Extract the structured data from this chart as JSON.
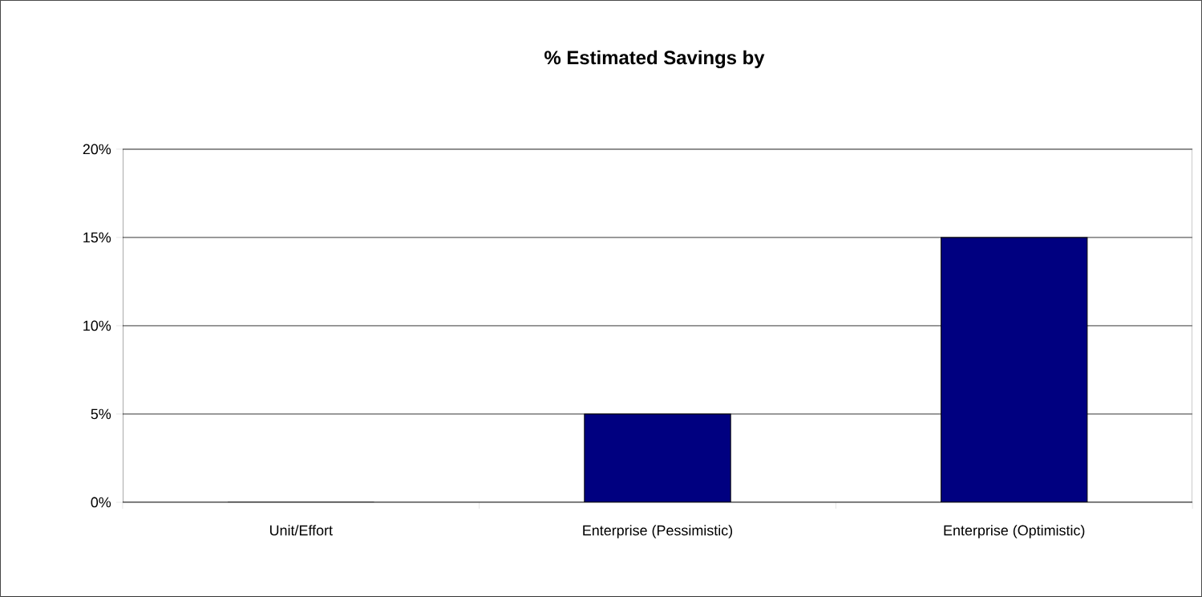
{
  "chart_data": {
    "type": "bar",
    "title": "% Estimated Savings by",
    "categories": [
      "Unit/Effort",
      "Enterprise (Pessimistic)",
      "Enterprise (Optimistic)"
    ],
    "values": [
      0,
      5,
      15
    ],
    "color": "#000080",
    "ylim": [
      0,
      20
    ],
    "yticks": [
      {
        "value": 0,
        "label": "0%"
      },
      {
        "value": 5,
        "label": "5%"
      },
      {
        "value": 10,
        "label": "10%"
      },
      {
        "value": 15,
        "label": "15%"
      },
      {
        "value": 20,
        "label": "20%"
      }
    ],
    "grid": "y"
  }
}
